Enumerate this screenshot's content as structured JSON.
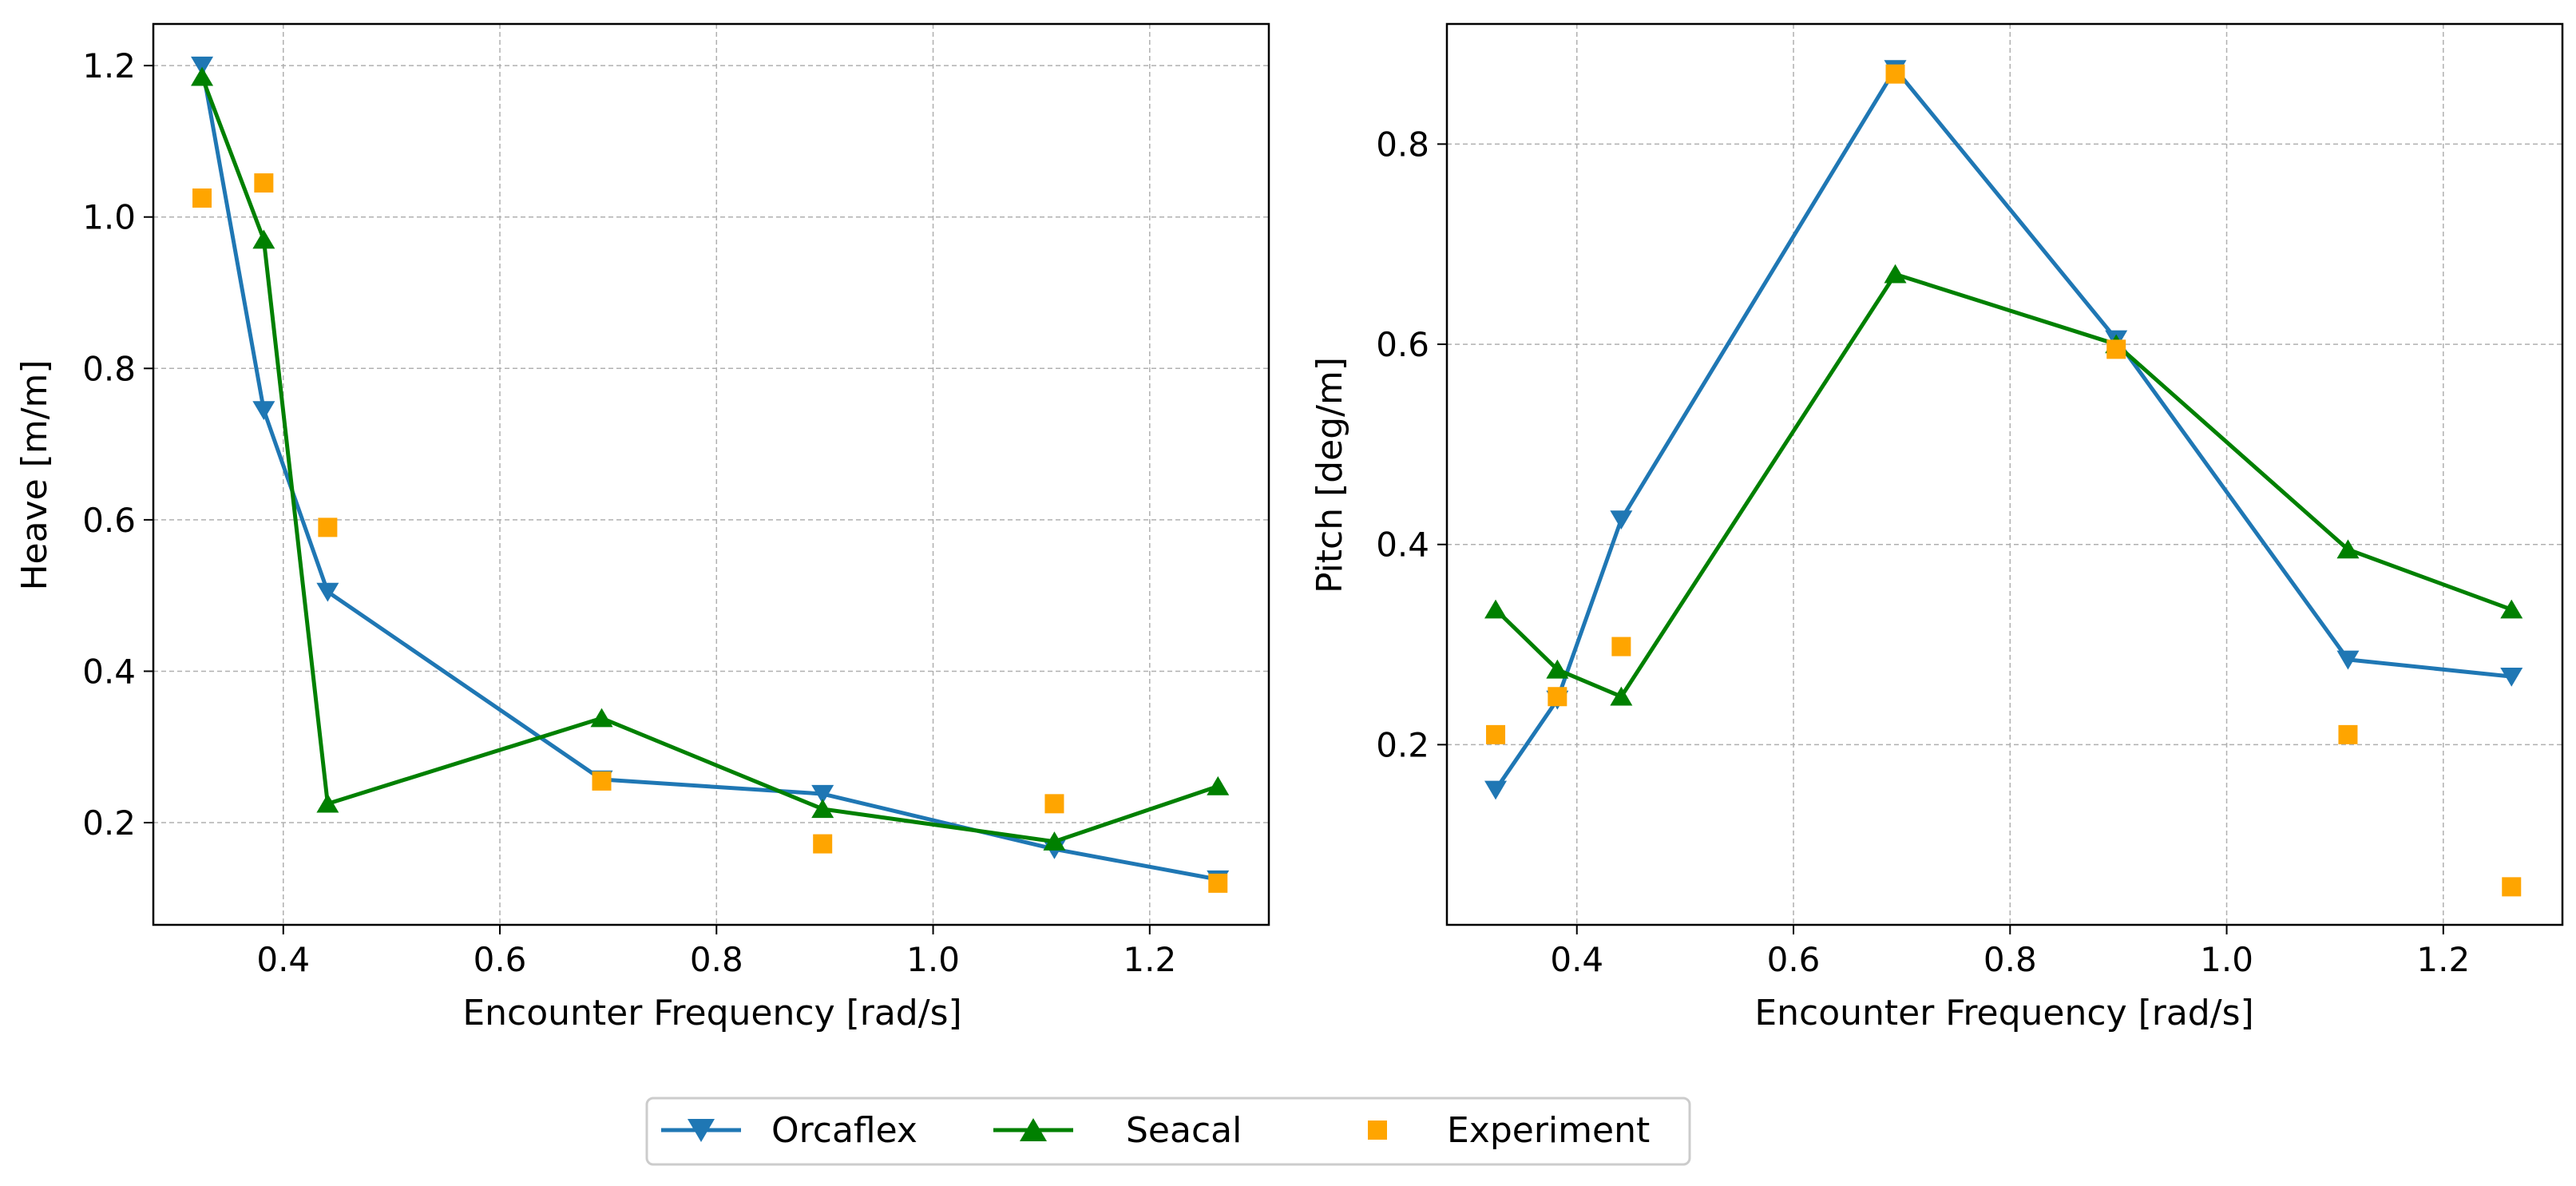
{
  "colors": {
    "orcaflex": "#1f77b4",
    "seacal": "#008000",
    "experiment": "#ffa500",
    "grid": "#b0b0b0"
  },
  "legend": {
    "placement": "bottom-center",
    "entries": [
      "Orcaflex",
      "Seacal",
      "Experiment"
    ]
  },
  "chart_data": [
    {
      "type": "line",
      "xlabel": "Encounter Frequency [rad/s]",
      "ylabel": "Heave [m/m]",
      "xlim": [
        0.28,
        1.31
      ],
      "ylim": [
        0.065,
        1.255
      ],
      "xticks": [
        0.4,
        0.6,
        0.8,
        1.0,
        1.2
      ],
      "xtick_labels": [
        "0.4",
        "0.6",
        "0.8",
        "1.0",
        "1.2"
      ],
      "yticks": [
        0.2,
        0.4,
        0.6,
        0.8,
        1.0,
        1.2
      ],
      "ytick_labels": [
        "0.2",
        "0.4",
        "0.6",
        "0.8",
        "1.0",
        "1.2"
      ],
      "grid": true,
      "x": [
        0.325,
        0.382,
        0.441,
        0.694,
        0.898,
        1.112,
        1.263
      ],
      "series": [
        {
          "name": "Orcaflex",
          "marker": "triangle-down",
          "line": true,
          "values": [
            1.2,
            0.745,
            0.505,
            0.257,
            0.238,
            0.165,
            0.125
          ]
        },
        {
          "name": "Seacal",
          "marker": "triangle-up",
          "line": true,
          "values": [
            1.185,
            0.97,
            0.225,
            0.338,
            0.218,
            0.175,
            0.248
          ]
        },
        {
          "name": "Experiment",
          "marker": "square",
          "line": false,
          "values": [
            1.025,
            1.045,
            0.59,
            0.255,
            0.172,
            0.225,
            0.12
          ]
        }
      ]
    },
    {
      "type": "line",
      "xlabel": "Encounter Frequency [rad/s]",
      "ylabel": "Pitch [deg/m]",
      "xlim": [
        0.28,
        1.31
      ],
      "ylim": [
        0.02,
        0.92
      ],
      "xticks": [
        0.4,
        0.6,
        0.8,
        1.0,
        1.2
      ],
      "xtick_labels": [
        "0.4",
        "0.6",
        "0.8",
        "1.0",
        "1.2"
      ],
      "yticks": [
        0.2,
        0.4,
        0.6,
        0.8
      ],
      "ytick_labels": [
        "0.2",
        "0.4",
        "0.6",
        "0.8"
      ],
      "grid": true,
      "x": [
        0.325,
        0.382,
        0.441,
        0.694,
        0.898,
        1.112,
        1.263
      ],
      "series": [
        {
          "name": "Orcaflex",
          "marker": "triangle-down",
          "line": true,
          "values": [
            0.155,
            0.245,
            0.425,
            0.875,
            0.605,
            0.285,
            0.268
          ]
        },
        {
          "name": "Seacal",
          "marker": "triangle-up",
          "line": true,
          "values": [
            0.335,
            0.275,
            0.248,
            0.67,
            0.6,
            0.395,
            0.335
          ]
        },
        {
          "name": "Experiment",
          "marker": "square",
          "line": false,
          "values": [
            0.21,
            0.248,
            0.298,
            0.87,
            0.595,
            0.21,
            0.058
          ]
        }
      ]
    }
  ]
}
